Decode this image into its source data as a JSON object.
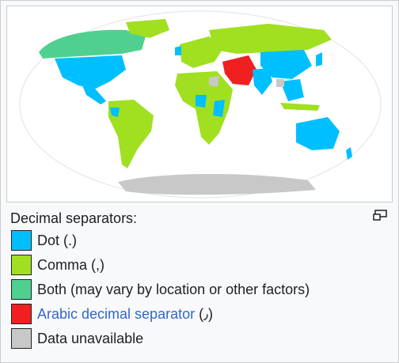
{
  "caption": {
    "title": "Decimal separators:"
  },
  "legend": [
    {
      "label": "Dot (.)",
      "color": "#00bfff",
      "link": false
    },
    {
      "label": "Comma (,)",
      "color": "#a0e020",
      "link": false
    },
    {
      "label": "Both (may vary by location or other factors)",
      "color": "#50d090",
      "link": false
    },
    {
      "label": "Arabic decimal separator",
      "suffix": " (٫)",
      "color": "#f02020",
      "link": true
    },
    {
      "label": "Data unavailable",
      "color": "#c8c8c8",
      "link": false
    }
  ],
  "map": {
    "colors": {
      "dot": "#00bfff",
      "comma": "#a0e020",
      "both": "#50d090",
      "arabic": "#f02020",
      "unavailable": "#c8c8c8"
    }
  }
}
